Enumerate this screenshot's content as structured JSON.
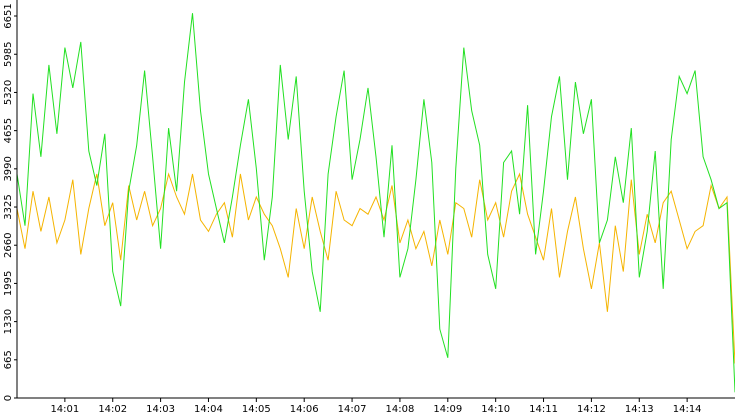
{
  "chart_data": {
    "type": "line",
    "categories": [
      null,
      null,
      null,
      null,
      null,
      null,
      "14:01",
      null,
      null,
      null,
      null,
      null,
      "14:02",
      null,
      null,
      null,
      null,
      null,
      "14:03",
      null,
      null,
      null,
      null,
      null,
      "14:04",
      null,
      null,
      null,
      null,
      null,
      "14:05",
      null,
      null,
      null,
      null,
      null,
      "14:06",
      null,
      null,
      null,
      null,
      null,
      "14:07",
      null,
      null,
      null,
      null,
      null,
      "14:08",
      null,
      null,
      null,
      null,
      null,
      "14:09",
      null,
      null,
      null,
      null,
      null,
      "14:10",
      null,
      null,
      null,
      null,
      null,
      "14:11",
      null,
      null,
      null,
      null,
      null,
      "14:12",
      null,
      null,
      null,
      null,
      null,
      "14:13",
      null,
      null,
      null,
      null,
      null,
      "14:14",
      null,
      null,
      null,
      null,
      null,
      null
    ],
    "series": [
      {
        "color": "#22e022",
        "values": [
          3900,
          3000,
          5300,
          4200,
          5800,
          4600,
          6100,
          5400,
          6200,
          4300,
          3700,
          4600,
          2200,
          1600,
          3600,
          4400,
          5700,
          4200,
          2600,
          4700,
          3600,
          5500,
          6700,
          5000,
          3900,
          3300,
          2700,
          3500,
          4400,
          5200,
          4000,
          2400,
          3500,
          5800,
          4500,
          5600,
          3600,
          2200,
          1500,
          3900,
          4900,
          5700,
          3800,
          4500,
          5400,
          4200,
          2800,
          4400,
          2100,
          2600,
          3800,
          5200,
          4100,
          1200,
          700,
          4000,
          6100,
          5000,
          4400,
          2500,
          1900,
          4100,
          4300,
          3200,
          5100,
          2500,
          3600,
          4900,
          5600,
          3800,
          5500,
          4600,
          5200,
          2700,
          3100,
          4200,
          3400,
          4700,
          2100,
          2900,
          4300,
          1900,
          4500,
          5600,
          5300,
          5700,
          4200,
          3800,
          3300,
          3400,
          100
        ]
      },
      {
        "color": "#f5b400",
        "values": [
          3300,
          2600,
          3600,
          2900,
          3500,
          2700,
          3100,
          3800,
          2500,
          3300,
          3900,
          3000,
          3400,
          2400,
          3700,
          3100,
          3600,
          3000,
          3300,
          3900,
          3500,
          3200,
          3900,
          3100,
          2900,
          3200,
          3400,
          2800,
          3900,
          3100,
          3500,
          3200,
          3000,
          2600,
          2100,
          3300,
          2600,
          3500,
          2900,
          2400,
          3600,
          3100,
          3000,
          3300,
          3200,
          3500,
          3100,
          3700,
          2700,
          3100,
          2600,
          2900,
          2300,
          3100,
          2500,
          3400,
          3300,
          2800,
          3800,
          3100,
          3400,
          2800,
          3600,
          3900,
          3200,
          2800,
          2400,
          3300,
          2100,
          2900,
          3500,
          2600,
          1900,
          2700,
          1500,
          3000,
          2200,
          3800,
          2500,
          3200,
          2700,
          3400,
          3600,
          3100,
          2600,
          2900,
          3000,
          3700,
          3300,
          3500,
          600
        ]
      }
    ],
    "ylim": [
      0,
      6651
    ],
    "yticks": [
      0,
      665,
      1330,
      1995,
      2660,
      3325,
      3990,
      4655,
      5320,
      5985,
      6651
    ]
  }
}
